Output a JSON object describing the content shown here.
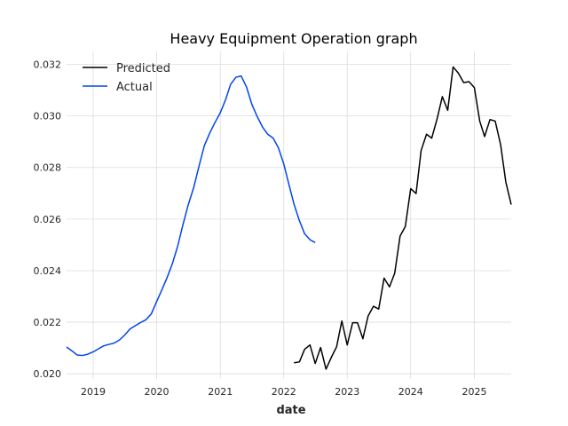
{
  "chart_data": {
    "type": "line",
    "title": "Heavy Equipment Operation graph",
    "xlabel": "date",
    "ylabel": "",
    "x_ticks": [
      "2019",
      "2020",
      "2021",
      "2022",
      "2023",
      "2024",
      "2025"
    ],
    "y_ticks": [
      "0.020",
      "0.022",
      "0.024",
      "0.026",
      "0.028",
      "0.030",
      "0.032"
    ],
    "xlim": [
      "2018-08-01",
      "2025-08-01"
    ],
    "ylim": [
      0.0198,
      0.0325
    ],
    "grid": true,
    "legend": {
      "placement": "top-left",
      "entries": [
        "Predicted",
        "Actual"
      ]
    },
    "series": [
      {
        "name": "Predicted",
        "color": "#000000",
        "points": [
          [
            "2022-03-01",
            0.02043
          ],
          [
            "2022-04-01",
            0.02046
          ],
          [
            "2022-05-01",
            0.02095
          ],
          [
            "2022-06-01",
            0.02112
          ],
          [
            "2022-07-01",
            0.0204
          ],
          [
            "2022-08-01",
            0.02102
          ],
          [
            "2022-09-01",
            0.02018
          ],
          [
            "2022-10-01",
            0.02063
          ],
          [
            "2022-11-01",
            0.02105
          ],
          [
            "2022-12-01",
            0.02205
          ],
          [
            "2023-01-01",
            0.02112
          ],
          [
            "2023-02-01",
            0.02198
          ],
          [
            "2023-03-01",
            0.02198
          ],
          [
            "2023-04-01",
            0.02136
          ],
          [
            "2023-05-01",
            0.02224
          ],
          [
            "2023-06-01",
            0.02262
          ],
          [
            "2023-07-01",
            0.02251
          ],
          [
            "2023-08-01",
            0.02371
          ],
          [
            "2023-09-01",
            0.02337
          ],
          [
            "2023-10-01",
            0.0239
          ],
          [
            "2023-11-01",
            0.02534
          ],
          [
            "2023-12-01",
            0.02571
          ],
          [
            "2024-01-01",
            0.02718
          ],
          [
            "2024-02-01",
            0.02699
          ],
          [
            "2024-03-01",
            0.02866
          ],
          [
            "2024-04-01",
            0.02929
          ],
          [
            "2024-05-01",
            0.02914
          ],
          [
            "2024-06-01",
            0.02989
          ],
          [
            "2024-07-01",
            0.03075
          ],
          [
            "2024-08-01",
            0.03022
          ],
          [
            "2024-09-01",
            0.0319
          ],
          [
            "2024-10-01",
            0.03166
          ],
          [
            "2024-11-01",
            0.03129
          ],
          [
            "2024-12-01",
            0.03133
          ],
          [
            "2025-01-01",
            0.0311
          ],
          [
            "2025-02-01",
            0.0298
          ],
          [
            "2025-03-01",
            0.0292
          ],
          [
            "2025-04-01",
            0.02986
          ],
          [
            "2025-05-01",
            0.0298
          ],
          [
            "2025-06-01",
            0.02889
          ],
          [
            "2025-07-01",
            0.02744
          ],
          [
            "2025-08-01",
            0.02656
          ]
        ]
      },
      {
        "name": "Actual",
        "color": "#0044ee",
        "points": [
          [
            "2018-08-01",
            0.02104
          ],
          [
            "2018-09-01",
            0.02089
          ],
          [
            "2018-10-01",
            0.02073
          ],
          [
            "2018-11-01",
            0.02071
          ],
          [
            "2018-12-01",
            0.02076
          ],
          [
            "2019-01-01",
            0.02085
          ],
          [
            "2019-02-01",
            0.02097
          ],
          [
            "2019-03-01",
            0.02108
          ],
          [
            "2019-04-01",
            0.02114
          ],
          [
            "2019-05-01",
            0.02119
          ],
          [
            "2019-06-01",
            0.02131
          ],
          [
            "2019-07-01",
            0.0215
          ],
          [
            "2019-08-01",
            0.02174
          ],
          [
            "2019-09-01",
            0.02187
          ],
          [
            "2019-10-01",
            0.02199
          ],
          [
            "2019-11-01",
            0.0221
          ],
          [
            "2019-12-01",
            0.02232
          ],
          [
            "2020-01-01",
            0.0228
          ],
          [
            "2020-02-01",
            0.02327
          ],
          [
            "2020-03-01",
            0.02373
          ],
          [
            "2020-04-01",
            0.02428
          ],
          [
            "2020-05-01",
            0.02495
          ],
          [
            "2020-06-01",
            0.0258
          ],
          [
            "2020-07-01",
            0.02656
          ],
          [
            "2020-08-01",
            0.02722
          ],
          [
            "2020-09-01",
            0.02806
          ],
          [
            "2020-10-01",
            0.02884
          ],
          [
            "2020-11-01",
            0.02933
          ],
          [
            "2020-12-01",
            0.02974
          ],
          [
            "2021-01-01",
            0.03012
          ],
          [
            "2021-02-01",
            0.03064
          ],
          [
            "2021-03-01",
            0.03122
          ],
          [
            "2021-04-01",
            0.0315
          ],
          [
            "2021-05-01",
            0.03155
          ],
          [
            "2021-06-01",
            0.03112
          ],
          [
            "2021-07-01",
            0.03046
          ],
          [
            "2021-08-01",
            0.02998
          ],
          [
            "2021-09-01",
            0.02957
          ],
          [
            "2021-10-01",
            0.02929
          ],
          [
            "2021-11-01",
            0.02914
          ],
          [
            "2021-12-01",
            0.02877
          ],
          [
            "2022-01-01",
            0.02814
          ],
          [
            "2022-02-01",
            0.02731
          ],
          [
            "2022-03-01",
            0.02658
          ],
          [
            "2022-04-01",
            0.02594
          ],
          [
            "2022-05-01",
            0.02543
          ],
          [
            "2022-06-01",
            0.0252
          ],
          [
            "2022-07-01",
            0.02509
          ]
        ]
      }
    ]
  }
}
